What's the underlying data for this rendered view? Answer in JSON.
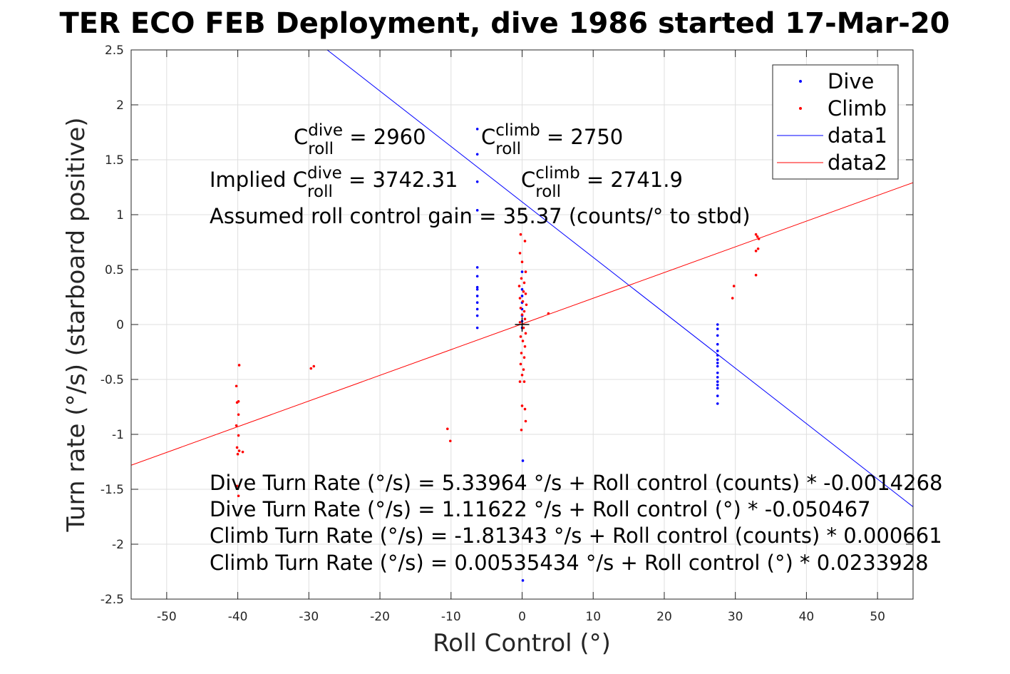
{
  "chart_data": {
    "type": "scatter",
    "title": "TER ECO FEB Deployment, dive 1986 started 17-Mar-20",
    "xlabel": "Roll Control (°)",
    "ylabel": "Turn rate (°/s) (starboard positive)",
    "xlim": [
      -55,
      55
    ],
    "ylim": [
      -2.5,
      2.5
    ],
    "xticks": [
      -50,
      -40,
      -30,
      -20,
      -10,
      0,
      10,
      20,
      30,
      40,
      50
    ],
    "yticks": [
      2.5,
      2,
      1.5,
      1,
      0.5,
      0,
      -0.5,
      -1,
      -1.5,
      -2,
      -2.5
    ],
    "xtick_labels": [
      "-50",
      "-40",
      "-30",
      "-20",
      "-10",
      "0",
      "10",
      "20",
      "30",
      "40",
      "50"
    ],
    "ytick_labels": [
      "2.5",
      "2",
      "1.5",
      "1",
      "0.5",
      "0",
      "-0.5",
      "-1",
      "-1.5",
      "-2",
      "-2.5"
    ],
    "grid": true,
    "legend_position": "top-right",
    "legend": [
      "Dive",
      "Climb",
      "data1",
      "data2"
    ],
    "colors": {
      "dive": "#0000ff",
      "climb": "#ff0000",
      "origin_marker": "#000000"
    },
    "series": [
      {
        "name": "Dive",
        "kind": "scatter",
        "points": [
          [
            -6.3,
            1.78
          ],
          [
            -6.3,
            1.55
          ],
          [
            -6.3,
            1.3
          ],
          [
            -6.3,
            1.04
          ],
          [
            -6.3,
            0.52
          ],
          [
            -6.3,
            0.44
          ],
          [
            -6.3,
            0.34
          ],
          [
            -6.3,
            0.32
          ],
          [
            -6.3,
            0.26
          ],
          [
            -6.3,
            0.2
          ],
          [
            -6.3,
            0.14
          ],
          [
            -6.3,
            0.08
          ],
          [
            -6.3,
            -0.03
          ],
          [
            0.0,
            0.48
          ],
          [
            0.0,
            0.32
          ],
          [
            0.0,
            0.26
          ],
          [
            0.0,
            0.2
          ],
          [
            0.0,
            0.14
          ],
          [
            0.0,
            0.08
          ],
          [
            0.0,
            0.03
          ],
          [
            0.0,
            -0.03
          ],
          [
            0.1,
            -1.24
          ],
          [
            0.1,
            -2.33
          ],
          [
            27.5,
            0.0
          ],
          [
            27.5,
            -0.04
          ],
          [
            27.5,
            -0.1
          ],
          [
            27.5,
            -0.18
          ],
          [
            27.5,
            -0.24
          ],
          [
            27.5,
            -0.28
          ],
          [
            27.5,
            -0.32
          ],
          [
            27.5,
            -0.35
          ],
          [
            27.5,
            -0.38
          ],
          [
            27.5,
            -0.44
          ],
          [
            27.5,
            -0.48
          ],
          [
            27.5,
            -0.52
          ],
          [
            27.5,
            -0.55
          ],
          [
            27.5,
            -0.58
          ],
          [
            27.5,
            -0.65
          ],
          [
            27.5,
            -0.72
          ]
        ]
      },
      {
        "name": "Climb",
        "kind": "scatter",
        "points": [
          [
            -39.8,
            -0.37
          ],
          [
            -40.2,
            -0.56
          ],
          [
            -39.9,
            -0.7
          ],
          [
            -40.1,
            -0.71
          ],
          [
            -39.9,
            -0.82
          ],
          [
            -40.2,
            -0.92
          ],
          [
            -39.9,
            -1.01
          ],
          [
            -40.1,
            -1.12
          ],
          [
            -39.8,
            -1.15
          ],
          [
            -39.3,
            -1.16
          ],
          [
            -40.0,
            -1.18
          ],
          [
            -40.1,
            -1.47
          ],
          [
            -39.9,
            -1.56
          ],
          [
            -29.7,
            -0.4
          ],
          [
            -29.3,
            -0.38
          ],
          [
            -10.5,
            -0.95
          ],
          [
            -10.1,
            -1.06
          ],
          [
            -0.2,
            0.82
          ],
          [
            0.4,
            0.76
          ],
          [
            -0.3,
            0.65
          ],
          [
            0.0,
            0.57
          ],
          [
            0.5,
            0.48
          ],
          [
            -0.1,
            0.42
          ],
          [
            0.3,
            0.38
          ],
          [
            -0.4,
            0.35
          ],
          [
            0.2,
            0.3
          ],
          [
            0.5,
            0.28
          ],
          [
            -0.3,
            0.24
          ],
          [
            0.1,
            0.21
          ],
          [
            0.6,
            0.18
          ],
          [
            -0.2,
            0.15
          ],
          [
            0.3,
            0.12
          ],
          [
            0.0,
            0.09
          ],
          [
            0.4,
            0.05
          ],
          [
            -0.3,
            0.02
          ],
          [
            0.2,
            -0.03
          ],
          [
            0.5,
            -0.08
          ],
          [
            -0.2,
            -0.11
          ],
          [
            0.1,
            -0.15
          ],
          [
            0.4,
            -0.2
          ],
          [
            -0.1,
            -0.26
          ],
          [
            0.3,
            -0.3
          ],
          [
            -0.2,
            -0.36
          ],
          [
            0.2,
            -0.41
          ],
          [
            0.0,
            -0.46
          ],
          [
            -0.3,
            -0.52
          ],
          [
            0.3,
            -0.52
          ],
          [
            0.0,
            -0.74
          ],
          [
            0.4,
            -0.77
          ],
          [
            0.5,
            -0.88
          ],
          [
            -0.1,
            -0.96
          ],
          [
            3.7,
            0.1
          ],
          [
            29.8,
            0.35
          ],
          [
            29.6,
            0.24
          ],
          [
            32.9,
            0.82
          ],
          [
            33.1,
            0.8
          ],
          [
            33.3,
            0.78
          ],
          [
            33.2,
            0.69
          ],
          [
            32.9,
            0.67
          ],
          [
            32.9,
            0.45
          ]
        ]
      },
      {
        "name": "data1",
        "kind": "line",
        "intercept": 1.11622,
        "slope": -0.050467
      },
      {
        "name": "data2",
        "kind": "line",
        "intercept": 0.00535434,
        "slope": 0.0233928
      }
    ],
    "origin_marker": [
      0,
      0
    ],
    "annotations": [
      {
        "base": "C",
        "sub": "roll",
        "sup": "dive",
        "rest": " = 2960"
      },
      {
        "base": "C",
        "sub": "roll",
        "sup": "climb",
        "rest": " = 2750"
      },
      {
        "prefix": "Implied ",
        "base": "C",
        "sub": "roll",
        "sup": "dive",
        "rest": " = 3742.31"
      },
      {
        "base": "C",
        "sub": "roll",
        "sup": "climb",
        "rest": " = 2741.9"
      },
      {
        "text": "Assumed roll control gain = 35.37 (counts/° to stbd)"
      },
      {
        "text": "Dive Turn Rate (°/s) = 5.33964 °/s + Roll control (counts) * -0.0014268"
      },
      {
        "text": "Dive Turn Rate (°/s) = 1.11622 °/s + Roll control (°) * -0.050467"
      },
      {
        "text": "Climb Turn Rate (°/s) = -1.81343 °/s + Roll control (counts) * 0.000661"
      },
      {
        "text": "Climb Turn Rate (°/s) = 0.00535434 °/s + Roll control (°) * 0.0233928"
      }
    ]
  }
}
